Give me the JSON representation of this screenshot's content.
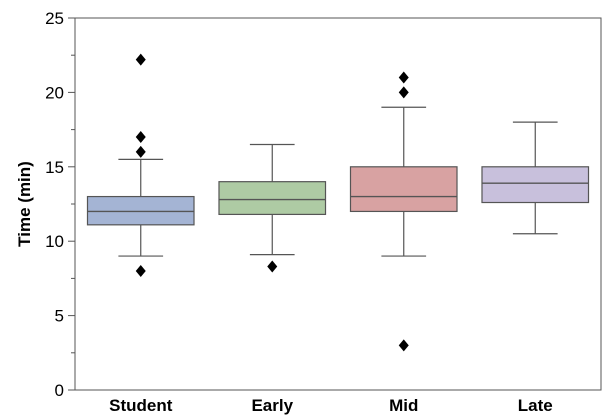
{
  "chart_data": {
    "type": "box",
    "ylabel": "Time (min)",
    "xlabel": "",
    "title": "",
    "ylim": [
      0,
      25
    ],
    "y_ticks": [
      0,
      5,
      10,
      15,
      20,
      25
    ],
    "grid": false,
    "categories": [
      "Student",
      "Early",
      "Mid",
      "Late"
    ],
    "boxes": [
      {
        "category": "Student",
        "whisker_low": 9.0,
        "q1": 11.1,
        "median": 12.0,
        "q3": 13.0,
        "whisker_high": 15.5,
        "outliers": [
          8.0,
          16.0,
          17.0,
          22.2
        ],
        "color": "#a4b4d4"
      },
      {
        "category": "Early",
        "whisker_low": 9.1,
        "q1": 11.8,
        "median": 12.8,
        "q3": 14.0,
        "whisker_high": 16.5,
        "outliers": [
          8.3
        ],
        "color": "#aecba4"
      },
      {
        "category": "Mid",
        "whisker_low": 9.0,
        "q1": 12.0,
        "median": 13.0,
        "q3": 15.0,
        "whisker_high": 19.0,
        "outliers": [
          3.0,
          20.0,
          21.0
        ],
        "color": "#d8a2a2"
      },
      {
        "category": "Late",
        "whisker_low": 10.5,
        "q1": 12.6,
        "median": 13.9,
        "q3": 15.0,
        "whisker_high": 18.0,
        "outliers": [],
        "color": "#c8c0dc"
      }
    ]
  }
}
